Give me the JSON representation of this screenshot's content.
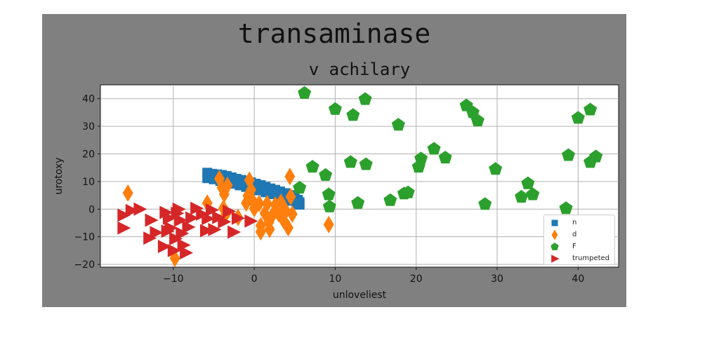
{
  "chart_data": {
    "type": "scatter",
    "suptitle": "transaminase",
    "title": "v achilary",
    "xlabel": "unloveliest",
    "ylabel": "urotoxy",
    "xlim": [
      -19,
      45
    ],
    "ylim": [
      -21,
      45
    ],
    "xticks": [
      -10,
      0,
      10,
      20,
      30,
      40
    ],
    "yticks": [
      -20,
      -10,
      0,
      10,
      20,
      30,
      40
    ],
    "grid": true,
    "legend_position": "lower-right",
    "series": [
      {
        "name": "n",
        "marker": "square",
        "color": "#1f77b4",
        "points": [
          [
            -5.8,
            13.2
          ],
          [
            -5.2,
            12.8
          ],
          [
            -4.6,
            12.6
          ],
          [
            -4.0,
            12.4
          ],
          [
            -3.4,
            12.0
          ],
          [
            -2.8,
            11.5
          ],
          [
            -2.2,
            11.0
          ],
          [
            -1.6,
            10.6
          ],
          [
            -1.0,
            10.2
          ],
          [
            -0.4,
            9.7
          ],
          [
            0.2,
            9.2
          ],
          [
            0.8,
            8.7
          ],
          [
            1.4,
            8.1
          ],
          [
            2.0,
            7.5
          ],
          [
            2.6,
            7.0
          ],
          [
            3.2,
            6.4
          ],
          [
            3.8,
            5.8
          ],
          [
            4.4,
            5.1
          ],
          [
            5.0,
            4.3
          ],
          [
            5.4,
            3.4
          ],
          [
            5.6,
            2.5
          ],
          [
            5.6,
            1.6
          ],
          [
            -5.8,
            11.2
          ],
          [
            -5.0,
            10.8
          ],
          [
            -4.2,
            10.2
          ],
          [
            -3.4,
            9.8
          ],
          [
            -2.6,
            9.2
          ],
          [
            -1.8,
            8.6
          ],
          [
            -1.0,
            8.0
          ],
          [
            -0.2,
            7.4
          ],
          [
            0.6,
            6.8
          ],
          [
            1.4,
            6.1
          ],
          [
            2.2,
            5.4
          ],
          [
            3.0,
            4.7
          ],
          [
            3.8,
            3.9
          ],
          [
            4.6,
            3.0
          ],
          [
            5.2,
            2.0
          ]
        ]
      },
      {
        "name": "d",
        "marker": "diamond",
        "color": "#ff7f0e",
        "points": [
          [
            -15.6,
            5.8
          ],
          [
            -9.8,
            -17.8
          ],
          [
            -5.8,
            2.2
          ],
          [
            -4.3,
            11.0
          ],
          [
            -4.0,
            7.8
          ],
          [
            -3.7,
            5.4
          ],
          [
            -3.3,
            8.6
          ],
          [
            -3.8,
            0.3
          ],
          [
            -3.5,
            -1.8
          ],
          [
            -2.0,
            -3.0
          ],
          [
            -1.0,
            2.2
          ],
          [
            -0.8,
            4.8
          ],
          [
            -0.6,
            10.5
          ],
          [
            -0.4,
            7.0
          ],
          [
            -0.2,
            3.0
          ],
          [
            0.0,
            0.2
          ],
          [
            0.6,
            2.0
          ],
          [
            0.8,
            -6.0
          ],
          [
            0.8,
            -8.2
          ],
          [
            1.3,
            -1.5
          ],
          [
            1.6,
            2.0
          ],
          [
            1.8,
            -4.8
          ],
          [
            1.9,
            -7.3
          ],
          [
            2.2,
            -2.4
          ],
          [
            2.6,
            1.5
          ],
          [
            3.0,
            -1.6
          ],
          [
            3.3,
            2.5
          ],
          [
            3.6,
            -4.0
          ],
          [
            3.9,
            -0.7
          ],
          [
            4.2,
            -6.7
          ],
          [
            4.4,
            11.8
          ],
          [
            4.5,
            4.5
          ],
          [
            4.7,
            -1.8
          ],
          [
            9.2,
            -5.6
          ]
        ]
      },
      {
        "name": "F",
        "marker": "pentagon",
        "color": "#2ca02c",
        "points": [
          [
            6.2,
            42.0
          ],
          [
            10.0,
            36.2
          ],
          [
            12.2,
            34.0
          ],
          [
            13.7,
            39.8
          ],
          [
            17.8,
            30.5
          ],
          [
            5.6,
            7.7
          ],
          [
            7.2,
            15.3
          ],
          [
            8.8,
            12.3
          ],
          [
            9.2,
            5.3
          ],
          [
            9.3,
            0.9
          ],
          [
            11.9,
            17.0
          ],
          [
            12.8,
            2.2
          ],
          [
            13.8,
            16.2
          ],
          [
            16.8,
            3.2
          ],
          [
            18.5,
            5.6
          ],
          [
            19.0,
            6.0
          ],
          [
            20.3,
            15.3
          ],
          [
            20.6,
            18.3
          ],
          [
            22.2,
            21.8
          ],
          [
            23.6,
            18.6
          ],
          [
            26.2,
            37.5
          ],
          [
            27.0,
            35.0
          ],
          [
            27.6,
            32.0
          ],
          [
            28.5,
            1.8
          ],
          [
            29.8,
            14.5
          ],
          [
            33.0,
            4.4
          ],
          [
            33.8,
            9.3
          ],
          [
            34.4,
            5.3
          ],
          [
            38.5,
            0.3
          ],
          [
            38.8,
            19.5
          ],
          [
            40.0,
            33.0
          ],
          [
            41.5,
            36.0
          ],
          [
            41.5,
            17.0
          ],
          [
            42.2,
            19.0
          ]
        ]
      },
      {
        "name": "trumpeted",
        "marker": "triangle-right",
        "color": "#d62728",
        "points": [
          [
            -16.2,
            -2.2
          ],
          [
            -16.2,
            -6.8
          ],
          [
            -15.2,
            -0.5
          ],
          [
            -14.2,
            0.0
          ],
          [
            -13.0,
            -10.5
          ],
          [
            -12.8,
            -4.0
          ],
          [
            -12.2,
            -8.5
          ],
          [
            -11.2,
            -13.5
          ],
          [
            -11.0,
            -1.2
          ],
          [
            -10.8,
            -8.0
          ],
          [
            -10.6,
            -3.3
          ],
          [
            -10.4,
            -6.8
          ],
          [
            -10.0,
            -15.0
          ],
          [
            -9.8,
            -10.7
          ],
          [
            -9.6,
            -1.5
          ],
          [
            -9.4,
            0.0
          ],
          [
            -9.2,
            -4.0
          ],
          [
            -9.0,
            -8.8
          ],
          [
            -8.8,
            -13.0
          ],
          [
            -8.5,
            -15.8
          ],
          [
            -8.2,
            -6.5
          ],
          [
            -7.8,
            -3.2
          ],
          [
            -7.2,
            0.3
          ],
          [
            -6.5,
            -1.8
          ],
          [
            -6.0,
            -7.8
          ],
          [
            -5.8,
            -3.4
          ],
          [
            -5.3,
            -0.3
          ],
          [
            -5.0,
            -7.4
          ],
          [
            -4.5,
            -3.0
          ],
          [
            -3.8,
            -4.6
          ],
          [
            -3.2,
            -0.8
          ],
          [
            -2.6,
            -8.3
          ],
          [
            -2.1,
            -3.3
          ],
          [
            -0.5,
            -4.3
          ]
        ]
      }
    ]
  }
}
